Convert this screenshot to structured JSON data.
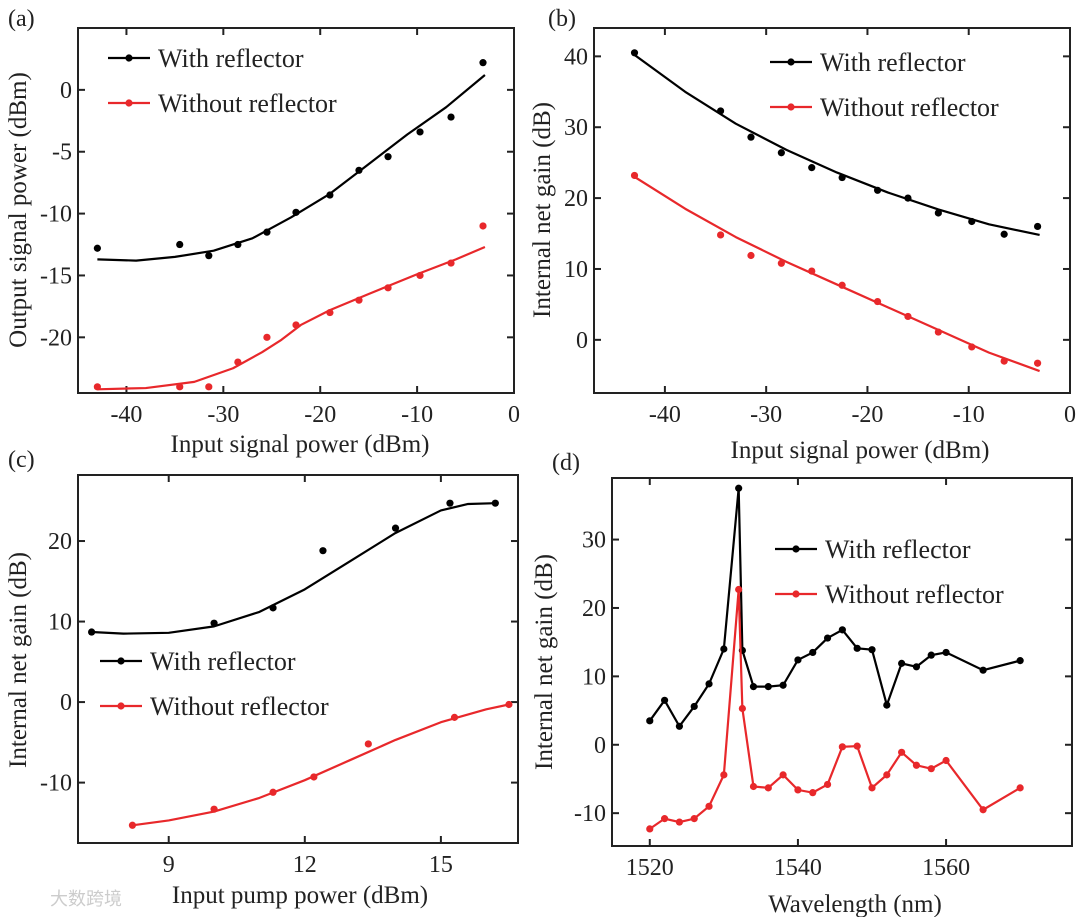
{
  "colors": {
    "with": "#000000",
    "without": "#e8282b"
  },
  "watermark": "大数跨境",
  "chart_data": [
    {
      "panel": "(a)",
      "type": "scatter",
      "xlabel": "Input signal power  (dBm)",
      "ylabel": "Output signal power (dBm)",
      "xlim": [
        -45,
        0
      ],
      "ylim": [
        -24.5,
        5
      ],
      "xticks": [
        -40,
        -30,
        -20,
        -10,
        0
      ],
      "yticks": [
        0,
        -5,
        -10,
        -15,
        -20
      ],
      "legend_position": "top-left",
      "series": [
        {
          "name": "With reflector",
          "color": "with",
          "x": [
            -43,
            -34.5,
            -31.5,
            -28.5,
            -25.5,
            -22.5,
            -19,
            -16,
            -13,
            -9.7,
            -6.5,
            -3.2
          ],
          "y": [
            -12.8,
            -12.5,
            -13.4,
            -12.5,
            -11.5,
            -9.9,
            -8.5,
            -6.5,
            -5.4,
            -3.4,
            -2.2,
            2.2
          ],
          "fit": [
            [
              -43,
              -13.7
            ],
            [
              -39,
              -13.8
            ],
            [
              -35,
              -13.5
            ],
            [
              -31,
              -13.0
            ],
            [
              -27,
              -12.0
            ],
            [
              -23,
              -10.3
            ],
            [
              -19,
              -8.4
            ],
            [
              -15,
              -6.0
            ],
            [
              -11,
              -3.6
            ],
            [
              -7,
              -1.4
            ],
            [
              -3,
              1.2
            ]
          ]
        },
        {
          "name": "Without reflector",
          "color": "without",
          "x": [
            -43,
            -34.5,
            -31.5,
            -28.5,
            -25.5,
            -22.5,
            -19,
            -16,
            -13,
            -9.7,
            -6.5,
            -3.2
          ],
          "y": [
            -24,
            -24,
            -24,
            -22,
            -20,
            -19,
            -18,
            -17,
            -16,
            -15,
            -14,
            -11
          ],
          "fit": [
            [
              -43,
              -24.2
            ],
            [
              -38,
              -24.1
            ],
            [
              -33,
              -23.6
            ],
            [
              -29,
              -22.5
            ],
            [
              -26,
              -21.2
            ],
            [
              -24,
              -20.2
            ],
            [
              -22,
              -19.0
            ],
            [
              -19,
              -17.8
            ],
            [
              -15,
              -16.5
            ],
            [
              -10,
              -14.9
            ],
            [
              -6,
              -13.7
            ],
            [
              -3,
              -12.7
            ]
          ]
        }
      ]
    },
    {
      "panel": "(b)",
      "type": "scatter",
      "xlabel": "Input signal power  (dBm)",
      "ylabel": "Internal net gain (dB)",
      "xlim": [
        -47,
        0
      ],
      "ylim": [
        -7.5,
        44
      ],
      "xticks": [
        -40,
        -30,
        -20,
        -10,
        0
      ],
      "yticks": [
        40,
        30,
        20,
        10,
        0
      ],
      "legend_position": "top-right",
      "series": [
        {
          "name": "With reflector",
          "color": "with",
          "x": [
            -43,
            -34.5,
            -31.5,
            -28.5,
            -25.5,
            -22.5,
            -19,
            -16,
            -13,
            -9.7,
            -6.5,
            -3.2
          ],
          "y": [
            40.5,
            32.3,
            28.6,
            26.4,
            24.3,
            22.9,
            21.1,
            20,
            17.9,
            16.7,
            14.9,
            16
          ],
          "fit": [
            [
              -43,
              40.2
            ],
            [
              -38,
              35
            ],
            [
              -33,
              30.5
            ],
            [
              -28,
              26.8
            ],
            [
              -23,
              23.6
            ],
            [
              -18,
              20.8
            ],
            [
              -13,
              18.4
            ],
            [
              -8,
              16.3
            ],
            [
              -3,
              14.8
            ]
          ]
        },
        {
          "name": "Without reflector",
          "color": "without",
          "x": [
            -43,
            -34.5,
            -31.5,
            -28.5,
            -25.5,
            -22.5,
            -19,
            -16,
            -13,
            -9.7,
            -6.5,
            -3.2
          ],
          "y": [
            23.2,
            14.8,
            11.9,
            10.8,
            9.7,
            7.7,
            5.4,
            3.3,
            1.1,
            -1,
            -3,
            -3.3
          ],
          "fit": [
            [
              -43,
              23
            ],
            [
              -38,
              18.5
            ],
            [
              -33,
              14.5
            ],
            [
              -28,
              11
            ],
            [
              -23,
              7.8
            ],
            [
              -18,
              4.6
            ],
            [
              -13,
              1.4
            ],
            [
              -8,
              -1.8
            ],
            [
              -3,
              -4.4
            ]
          ]
        }
      ]
    },
    {
      "panel": "(c)",
      "type": "scatter",
      "xlabel": "Input pump power  (dBm)",
      "ylabel": "Internal net gain (dB)",
      "xlim": [
        7,
        16.7
      ],
      "ylim": [
        -17.5,
        28.2
      ],
      "xticks": [
        9,
        12,
        15
      ],
      "yticks": [
        20,
        10,
        0,
        -10
      ],
      "legend_position": "center-left",
      "series": [
        {
          "name": "With reflector",
          "color": "with",
          "x": [
            7.3,
            10,
            11.3,
            12.4,
            14,
            15.2,
            16.2
          ],
          "y": [
            8.7,
            9.8,
            11.7,
            18.8,
            21.6,
            24.7,
            24.7
          ],
          "fit": [
            [
              7.3,
              8.7
            ],
            [
              8,
              8.5
            ],
            [
              9,
              8.6
            ],
            [
              10,
              9.4
            ],
            [
              11,
              11.2
            ],
            [
              12,
              14
            ],
            [
              13,
              17.5
            ],
            [
              14,
              21
            ],
            [
              15,
              23.8
            ],
            [
              15.6,
              24.6
            ],
            [
              16.2,
              24.7
            ]
          ]
        },
        {
          "name": "Without reflector",
          "color": "without",
          "x": [
            8.2,
            10,
            11.3,
            12.2,
            13.4,
            15.3,
            16.5
          ],
          "y": [
            -15.3,
            -13.3,
            -11.2,
            -9.3,
            -5.2,
            -1.9,
            -0.3
          ],
          "fit": [
            [
              8.2,
              -15.3
            ],
            [
              9,
              -14.7
            ],
            [
              10,
              -13.6
            ],
            [
              11,
              -11.9
            ],
            [
              12,
              -9.7
            ],
            [
              13,
              -7.2
            ],
            [
              14,
              -4.7
            ],
            [
              15,
              -2.5
            ],
            [
              16,
              -0.9
            ],
            [
              16.5,
              -0.3
            ]
          ]
        }
      ]
    },
    {
      "panel": "(d)",
      "type": "line",
      "xlabel": "Wavelength (nm)",
      "ylabel": "Internal net gain (dB)",
      "xlim": [
        1514.9,
        1577
      ],
      "ylim": [
        -14.8,
        39
      ],
      "xticks": [
        1520,
        1540,
        1560
      ],
      "yticks": [
        30,
        20,
        10,
        0,
        -10
      ],
      "legend_position": "top-right",
      "series": [
        {
          "name": "With reflector",
          "color": "with",
          "x": [
            1520,
            1522,
            1524,
            1526,
            1528,
            1530,
            1532,
            1532.5,
            1534,
            1536,
            1538,
            1540,
            1542,
            1544,
            1546,
            1548,
            1550,
            1552,
            1554,
            1556,
            1558,
            1560,
            1565,
            1570
          ],
          "y": [
            3.5,
            6.5,
            2.7,
            5.6,
            8.9,
            14,
            37.5,
            13.8,
            8.5,
            8.5,
            8.7,
            12.4,
            13.5,
            15.6,
            16.8,
            14.1,
            13.9,
            5.8,
            11.9,
            11.4,
            13.1,
            13.5,
            10.9,
            12.3
          ]
        },
        {
          "name": "Without reflector",
          "color": "without",
          "x": [
            1520,
            1522,
            1524,
            1526,
            1528,
            1530,
            1532,
            1532.5,
            1534,
            1536,
            1538,
            1540,
            1542,
            1544,
            1546,
            1548,
            1550,
            1552,
            1554,
            1556,
            1558,
            1560,
            1565,
            1570
          ],
          "y": [
            -12.3,
            -10.8,
            -11.3,
            -10.8,
            -9,
            -4.4,
            22.7,
            5.3,
            -6.1,
            -6.3,
            -4.4,
            -6.6,
            -7,
            -5.8,
            -0.3,
            -0.2,
            -6.3,
            -4.4,
            -1.1,
            -3,
            -3.5,
            -2.3,
            -9.5,
            -6.3
          ]
        }
      ]
    }
  ]
}
